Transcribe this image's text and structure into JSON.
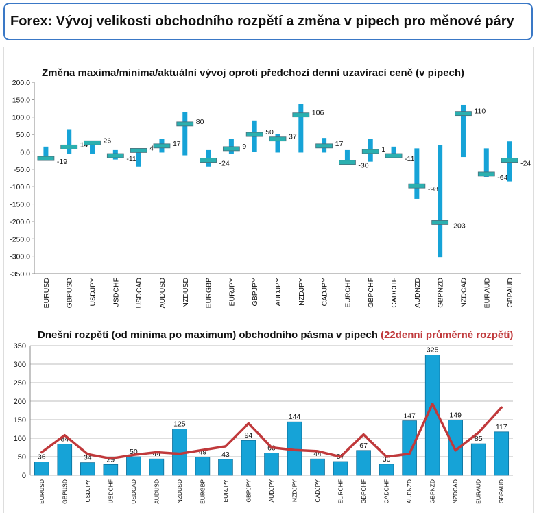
{
  "header": {
    "title": "Forex: Vývoj velikosti obchodního rozpětí a změna v pipech pro měnové páry"
  },
  "chart_data": [
    {
      "type": "range",
      "title": "Změna maxima/minima/aktuální vývoj oproti předchozí denní uzavírací ceně (v pipech)",
      "categories": [
        "EURUSD",
        "GBPUSD",
        "USDJPY",
        "USDCHF",
        "USDCAD",
        "AUDUSD",
        "NZDUSD",
        "EURGBP",
        "EURJPY",
        "GBPJPY",
        "AUDJPY",
        "NZDJPY",
        "CADJPY",
        "EURCHF",
        "GBPCHF",
        "CADCHF",
        "AUDNZD",
        "GBPNZD",
        "NZDCAD",
        "EURAUD",
        "GBPAUD"
      ],
      "high": [
        15,
        65,
        30,
        5,
        5,
        38,
        115,
        5,
        38,
        90,
        52,
        138,
        40,
        5,
        38,
        15,
        10,
        20,
        135,
        10,
        30
      ],
      "low": [
        -25,
        -5,
        -5,
        -22,
        -42,
        -2,
        -10,
        -42,
        -5,
        0,
        -2,
        -2,
        -2,
        -35,
        -28,
        -15,
        -135,
        -303,
        -15,
        -72,
        -85
      ],
      "current": [
        -19,
        14,
        26,
        -11,
        4,
        17,
        80,
        -24,
        9,
        50,
        37,
        106,
        17,
        -30,
        1,
        -11,
        -98,
        -203,
        110,
        -64,
        -24
      ],
      "ylim": [
        -350,
        200
      ],
      "yticks": [
        "200.0",
        "150.0",
        "100.0",
        "50.0",
        "0.0",
        "-50.0",
        "-100.0",
        "-150.0",
        "-200.0",
        "-250.0",
        "-300.0",
        "-350.0"
      ],
      "colors": {
        "bar": "#16a3d7",
        "marker": "#2bb0b0"
      }
    },
    {
      "type": "bar+line",
      "title": "Dnešní rozpětí (od minima po maximum) obchodního pásma v pipech",
      "title_highlight": "(22denní průměrné rozpětí)",
      "categories": [
        "EURUSD",
        "GBPUSD",
        "USDJPY",
        "USDCHF",
        "USDCAD",
        "AUDUSD",
        "NZDUSD",
        "EURGBP",
        "EURJPY",
        "GBPJPY",
        "AUDJPY",
        "NZDJPY",
        "CADJPY",
        "EURCHF",
        "GBPCHF",
        "CADCHF",
        "AUDNZD",
        "GBPNZD",
        "NZDCAD",
        "EURAUD",
        "GBPAUD"
      ],
      "values": [
        36,
        84,
        34,
        29,
        50,
        44,
        125,
        49,
        43,
        94,
        60,
        144,
        44,
        37,
        67,
        30,
        147,
        325,
        149,
        85,
        117
      ],
      "avg_22d": [
        62,
        108,
        57,
        45,
        55,
        62,
        58,
        68,
        78,
        140,
        75,
        68,
        65,
        50,
        110,
        50,
        58,
        193,
        67,
        115,
        183
      ],
      "ylim": [
        0,
        350
      ],
      "yticks": [
        "350",
        "300",
        "250",
        "200",
        "150",
        "100",
        "50",
        "0"
      ],
      "colors": {
        "bar": "#16a3d7",
        "line": "#c0393b"
      }
    }
  ]
}
